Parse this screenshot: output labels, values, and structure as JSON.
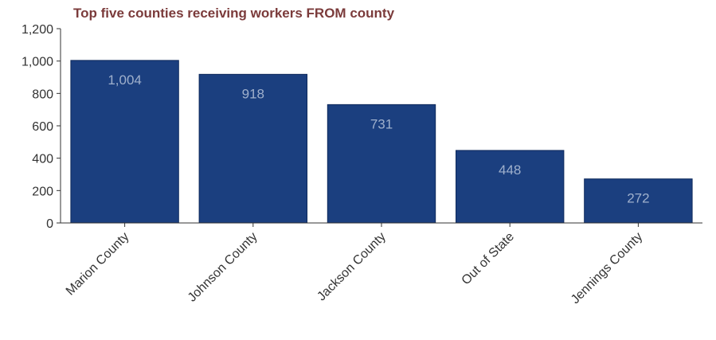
{
  "chart_data": {
    "type": "bar",
    "title": "Top five counties receiving workers FROM county",
    "xlabel": "",
    "ylabel": "",
    "categories": [
      "Marion County",
      "Johnson County",
      "Jackson County",
      "Out of State",
      "Jennings County"
    ],
    "values": [
      1004,
      918,
      731,
      448,
      272
    ],
    "data_labels": [
      "1,004",
      "918",
      "731",
      "448",
      "272"
    ],
    "ylim": [
      0,
      1200
    ],
    "yticks": [
      0,
      200,
      400,
      600,
      800,
      1000,
      1200
    ],
    "ytick_labels": [
      "0",
      "200",
      "400",
      "600",
      "800",
      "1,000",
      "1,200"
    ],
    "grid": false,
    "legend": "none",
    "colors": {
      "bar": "#1b3f7f",
      "bar_edge": "#0e2a5c",
      "title": "#7b3b3b",
      "data_label": "#9fb0cc",
      "axis": "#333333"
    }
  }
}
